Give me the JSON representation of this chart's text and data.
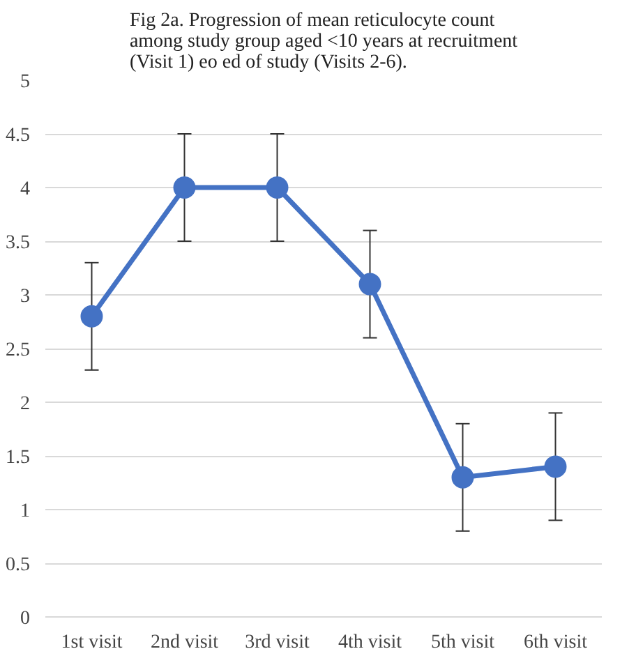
{
  "chart_data": {
    "type": "line",
    "title": "Fig 2a. Progression of mean reticulocyte count among study group aged <10 years at recruitment (Visit 1) eo ed of study (Visits 2-6).",
    "categories": [
      "1st visit",
      "2nd visit",
      "3rd visit",
      "4th visit",
      "5th visit",
      "6th visit"
    ],
    "series": [
      {
        "color": "#4472c4",
        "values": [
          2.8,
          4.0,
          4.0,
          3.1,
          1.3,
          1.4
        ],
        "errors": [
          0.5,
          0.5,
          0.5,
          0.5,
          0.5,
          0.5
        ]
      }
    ],
    "ylim": [
      0,
      5
    ],
    "yticks": [
      0,
      0.5,
      1,
      1.5,
      2,
      2.5,
      3,
      3.5,
      4,
      4.5,
      5
    ],
    "grid": "y",
    "marker": "circle",
    "line_style": "solid"
  }
}
